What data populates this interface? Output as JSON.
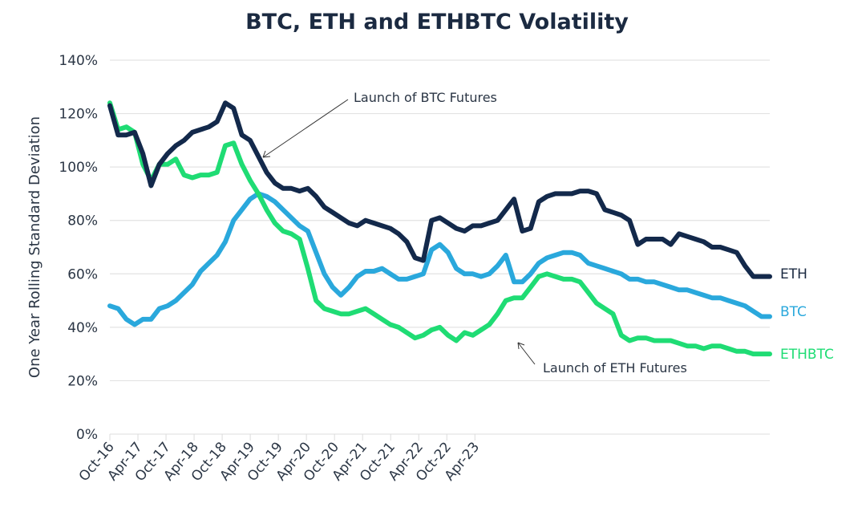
{
  "chart_data": {
    "type": "line",
    "title": "BTC, ETH and ETHBTC Volatility",
    "xlabel": "",
    "ylabel": "One Year Rolling Standard Deviation",
    "ylim": [
      0,
      140
    ],
    "yticks": [
      0,
      20,
      40,
      60,
      80,
      100,
      120,
      140
    ],
    "ytick_labels": [
      "0%",
      "20%",
      "40%",
      "60%",
      "80%",
      "100%",
      "120%",
      "140%"
    ],
    "grid": true,
    "x_start": "Oct-16",
    "x_end_months": 141,
    "xticks_months": [
      0,
      6,
      12,
      18,
      24,
      30,
      36,
      42,
      48,
      54,
      60,
      66,
      72,
      78
    ],
    "xtick_labels": [
      "Oct-16",
      "Apr-17",
      "Oct-17",
      "Apr-18",
      "Oct-18",
      "Apr-19",
      "Oct-19",
      "Apr-20",
      "Oct-20",
      "Apr-21",
      "Oct-21",
      "Apr-22",
      "Oct-22",
      "Apr-23"
    ],
    "legend_placement": "right-end-labels",
    "x_months": [
      0,
      1,
      2,
      3,
      4,
      5,
      6,
      7,
      8,
      9,
      10,
      11,
      12,
      13,
      14,
      15,
      16,
      17,
      18,
      19,
      20,
      21,
      22,
      23,
      24,
      25,
      26,
      27,
      28,
      29,
      30,
      31,
      32,
      33,
      34,
      35,
      36,
      37,
      38,
      39,
      40,
      41,
      42,
      43,
      44,
      45,
      46,
      47,
      48,
      49,
      50,
      51,
      52,
      53,
      54,
      55,
      56,
      57,
      58,
      59,
      60,
      61,
      62,
      63,
      64,
      65,
      66,
      67,
      68,
      69,
      70,
      71,
      72,
      73,
      74,
      75,
      76,
      77,
      78,
      79,
      80
    ],
    "series": [
      {
        "name": "ETH",
        "color": "#13294b",
        "values": [
          123,
          112,
          112,
          113,
          105,
          93,
          101,
          105,
          108,
          110,
          113,
          114,
          115,
          117,
          124,
          122,
          112,
          110,
          104,
          98,
          94,
          92,
          92,
          91,
          92,
          89,
          85,
          83,
          81,
          79,
          78,
          80,
          79,
          78,
          77,
          75,
          72,
          66,
          65,
          80,
          81,
          79,
          77,
          76,
          78,
          78,
          79,
          80,
          84,
          88,
          76,
          77,
          87,
          89,
          90,
          90,
          90,
          91,
          91,
          90,
          84,
          83,
          82,
          80,
          71,
          73,
          73,
          73,
          71,
          75,
          74,
          73,
          72,
          70,
          70,
          69,
          68,
          63,
          59,
          59,
          59
        ]
      },
      {
        "name": "BTC",
        "color": "#2aa8dc",
        "values": [
          48,
          47,
          43,
          41,
          43,
          43,
          47,
          48,
          50,
          53,
          56,
          61,
          64,
          67,
          72,
          80,
          84,
          88,
          90,
          89,
          87,
          84,
          81,
          78,
          76,
          68,
          60,
          55,
          52,
          55,
          59,
          61,
          61,
          62,
          60,
          58,
          58,
          59,
          60,
          69,
          71,
          68,
          62,
          60,
          60,
          59,
          60,
          63,
          67,
          57,
          57,
          60,
          64,
          66,
          67,
          68,
          68,
          67,
          64,
          63,
          62,
          61,
          60,
          58,
          58,
          57,
          57,
          56,
          55,
          54,
          54,
          53,
          52,
          51,
          51,
          50,
          49,
          48,
          46,
          44,
          44
        ]
      },
      {
        "name": "ETHBTC",
        "color": "#1fdc74",
        "values": [
          124,
          114,
          115,
          113,
          101,
          95,
          101,
          101,
          103,
          97,
          96,
          97,
          97,
          98,
          108,
          109,
          101,
          95,
          90,
          84,
          79,
          76,
          75,
          73,
          62,
          50,
          47,
          46,
          45,
          45,
          46,
          47,
          45,
          43,
          41,
          40,
          38,
          36,
          37,
          39,
          40,
          37,
          35,
          38,
          37,
          39,
          41,
          45,
          50,
          51,
          51,
          55,
          59,
          60,
          59,
          58,
          58,
          57,
          53,
          49,
          47,
          45,
          37,
          35,
          36,
          36,
          35,
          35,
          35,
          34,
          33,
          33,
          32,
          33,
          33,
          32,
          31,
          31,
          30,
          30,
          30
        ]
      }
    ],
    "annotations": [
      {
        "text": "Launch of BTC Futures",
        "points_to": "Dec-17"
      },
      {
        "text": "Launch of ETH Futures",
        "points_to": "Feb-21"
      }
    ]
  }
}
